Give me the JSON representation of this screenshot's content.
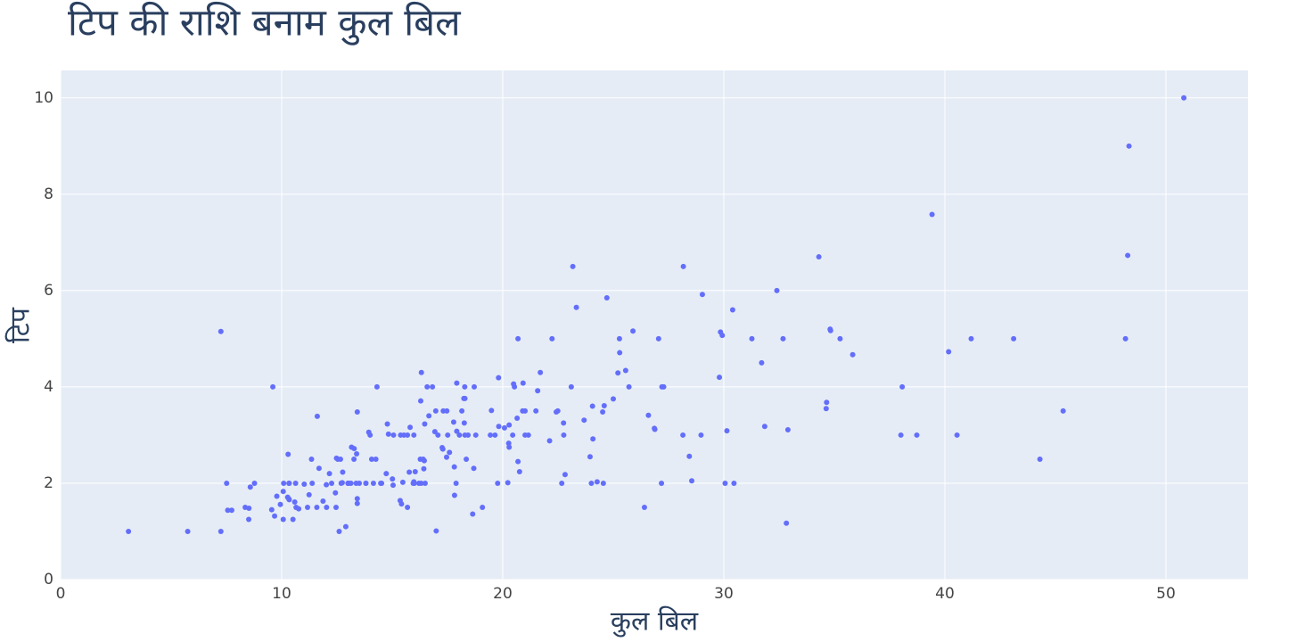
{
  "chart_data": {
    "type": "scatter",
    "title": "टिप की राशि बनाम कुल बिल",
    "x_label": "कुल बिल",
    "y_label": "टिप",
    "color": "#636efa",
    "grid": true,
    "xlim": [
      0,
      53.71
    ],
    "ylim": [
      0,
      10.57
    ],
    "xticks": [
      0,
      10,
      20,
      30,
      40,
      50
    ],
    "yticks": [
      0,
      2,
      4,
      6,
      8,
      10
    ],
    "x": [
      16.99,
      10.34,
      21.01,
      23.68,
      24.59,
      25.29,
      8.77,
      26.88,
      15.04,
      14.78,
      10.27,
      35.26,
      15.42,
      18.43,
      14.83,
      21.58,
      10.33,
      16.29,
      16.97,
      20.65,
      17.92,
      20.29,
      15.77,
      39.42,
      19.82,
      17.81,
      13.37,
      12.69,
      21.7,
      19.65,
      9.55,
      18.35,
      15.06,
      20.69,
      17.78,
      24.06,
      16.31,
      16.93,
      18.69,
      31.27,
      16.04,
      17.46,
      13.94,
      9.68,
      30.4,
      18.29,
      22.23,
      32.4,
      28.55,
      18.04,
      12.54,
      10.29,
      34.81,
      9.94,
      25.56,
      19.49,
      38.01,
      26.41,
      11.24,
      48.27,
      20.29,
      13.81,
      11.02,
      18.29,
      17.59,
      20.08,
      16.45,
      3.07,
      20.23,
      15.01,
      12.02,
      17.07,
      26.86,
      25.28,
      14.73,
      10.51,
      17.92,
      27.2,
      22.76,
      17.29,
      19.44,
      16.66,
      10.07,
      32.68,
      15.98,
      34.83,
      13.03,
      18.28,
      24.71,
      21.16,
      28.97,
      22.49,
      5.75,
      16.32,
      22.75,
      40.17,
      27.28,
      12.03,
      21.01,
      12.46,
      11.35,
      15.38,
      44.3,
      22.42,
      20.92,
      15.36,
      20.49,
      25.21,
      18.24,
      14.31,
      14.0,
      7.25,
      38.07,
      23.95,
      25.71,
      17.31,
      29.93,
      10.65,
      12.43,
      24.08,
      11.69,
      13.42,
      14.26,
      15.95,
      12.48,
      29.8,
      8.52,
      14.52,
      11.38,
      22.82,
      19.08,
      20.27,
      11.17,
      12.26,
      18.26,
      8.51,
      10.33,
      14.15,
      16.0,
      13.16,
      17.47,
      34.3,
      41.19,
      27.05,
      16.43,
      8.35,
      18.64,
      11.87,
      9.78,
      7.51,
      14.07,
      13.13,
      17.26,
      24.55,
      19.77,
      29.85,
      48.17,
      25.0,
      13.39,
      16.49,
      21.5,
      12.66,
      16.21,
      13.81,
      17.51,
      24.52,
      20.76,
      31.71,
      10.59,
      10.63,
      50.81,
      15.81,
      7.25,
      31.85,
      16.82,
      32.9,
      17.89,
      14.48,
      9.6,
      34.63,
      34.65,
      23.33,
      45.35,
      23.17,
      40.55,
      20.69,
      20.9,
      30.46,
      18.15,
      23.1,
      15.69,
      19.81,
      28.44,
      15.48,
      16.58,
      7.56,
      10.34,
      43.11,
      13.0,
      13.51,
      18.71,
      12.74,
      13.0,
      16.4,
      20.53,
      16.47,
      26.59,
      38.73,
      24.27,
      12.76,
      30.06,
      25.89,
      48.33,
      13.27,
      28.17,
      12.9,
      28.15,
      11.59,
      7.74,
      30.14,
      12.16,
      13.42,
      8.58,
      15.98,
      13.42,
      16.27,
      10.09,
      20.45,
      13.28,
      22.12,
      24.01,
      15.69,
      11.61,
      10.77,
      15.53,
      10.07,
      12.6,
      32.83,
      35.83,
      29.03,
      27.18,
      22.67,
      17.82,
      18.78
    ],
    "values": [
      1.01,
      1.66,
      3.5,
      3.31,
      3.61,
      4.71,
      2.0,
      3.12,
      1.96,
      3.23,
      1.71,
      5.0,
      1.57,
      3.0,
      3.02,
      3.92,
      1.67,
      3.71,
      3.5,
      3.35,
      4.08,
      2.75,
      2.23,
      7.58,
      3.18,
      2.34,
      2.0,
      2.0,
      4.3,
      3.0,
      1.45,
      2.5,
      3.0,
      2.45,
      3.27,
      3.6,
      2.0,
      3.07,
      2.31,
      5.0,
      2.24,
      2.54,
      3.06,
      1.32,
      5.6,
      3.0,
      5.0,
      6.0,
      2.05,
      3.0,
      2.5,
      2.6,
      5.2,
      1.56,
      4.34,
      3.51,
      3.0,
      1.5,
      1.76,
      6.73,
      3.21,
      2.0,
      1.98,
      3.76,
      2.64,
      3.15,
      2.47,
      1.0,
      2.01,
      2.09,
      1.97,
      3.0,
      3.14,
      5.0,
      2.2,
      1.25,
      3.08,
      4.0,
      3.0,
      2.71,
      3.0,
      3.4,
      1.83,
      5.0,
      2.03,
      5.17,
      2.0,
      4.0,
      5.85,
      3.0,
      3.0,
      3.5,
      1.0,
      4.3,
      3.25,
      4.73,
      4.0,
      1.5,
      3.0,
      1.5,
      2.5,
      3.0,
      2.5,
      3.48,
      4.08,
      1.64,
      4.06,
      4.29,
      3.76,
      4.0,
      3.0,
      1.0,
      4.0,
      2.55,
      4.0,
      3.5,
      5.07,
      1.5,
      1.8,
      2.92,
      2.31,
      1.68,
      2.5,
      2.0,
      2.52,
      4.2,
      1.48,
      2.0,
      2.0,
      2.18,
      1.5,
      2.83,
      1.5,
      2.0,
      3.25,
      1.25,
      2.0,
      2.0,
      2.0,
      2.75,
      3.5,
      6.7,
      5.0,
      5.0,
      2.3,
      1.5,
      1.36,
      1.63,
      1.73,
      2.0,
      2.5,
      2.0,
      2.74,
      2.0,
      2.0,
      5.14,
      5.0,
      3.75,
      2.61,
      2.0,
      3.5,
      2.5,
      2.0,
      2.0,
      3.0,
      3.48,
      2.24,
      4.5,
      1.61,
      2.0,
      10.0,
      3.16,
      5.15,
      3.18,
      4.0,
      3.11,
      2.0,
      2.0,
      4.0,
      3.55,
      3.68,
      5.65,
      3.5,
      6.5,
      3.0,
      5.0,
      3.5,
      2.0,
      3.5,
      4.0,
      1.5,
      4.19,
      2.56,
      2.02,
      4.0,
      1.44,
      2.0,
      5.0,
      2.0,
      2.0,
      4.0,
      2.01,
      2.0,
      2.5,
      4.0,
      3.23,
      3.41,
      3.0,
      2.03,
      2.23,
      2.0,
      5.16,
      9.0,
      2.5,
      6.5,
      1.1,
      3.0,
      1.5,
      1.44,
      3.09,
      2.2,
      3.48,
      1.92,
      3.0,
      1.58,
      2.5,
      2.0,
      3.0,
      2.72,
      2.88,
      2.0,
      3.0,
      3.39,
      1.47,
      3.0,
      1.25,
      1.0,
      1.17,
      4.67,
      5.92,
      2.0,
      2.0,
      1.75,
      3.0
    ]
  }
}
